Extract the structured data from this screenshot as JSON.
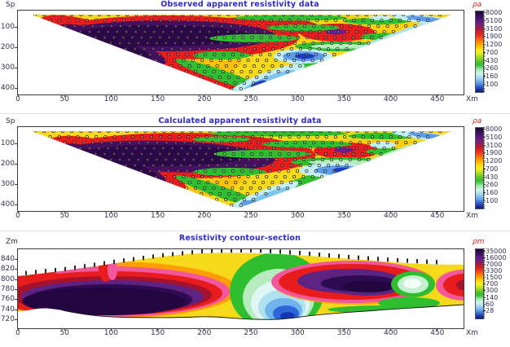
{
  "colors": {
    "title_blue": "#2f2acd",
    "tick_label": "#32324e",
    "rho_label_red": "#cc2015",
    "frame": "#3c3c3c"
  },
  "colorbar_gradient": [
    "#1d0636 0%",
    "#3a0d62 6%",
    "#5b1a86 12%",
    "#7a1f77 17%",
    "#a11a45 21%",
    "#d91c1c 26%",
    "#ef3a24 31%",
    "#ff7b00 37%",
    "#ffb300 42%",
    "#ffe312 47%",
    "#e8ef25 52%",
    "#aade22 56%",
    "#55c328 62%",
    "#2fbe2f 66%",
    "#9fe8b0 72%",
    "#d4f4ee 77%",
    "#a4d8f2 82%",
    "#64a8ec 88%",
    "#2f62d8 93%",
    "#1b2f9e 97%",
    "#101b72 100%"
  ],
  "panels": [
    {
      "title": "Observed apparent resistivity data",
      "y_axis_label": "Sp",
      "x_axis_unit": "Xm",
      "colorbar_label": "ρa",
      "y_ticks": [
        "100",
        "200",
        "300",
        "400"
      ],
      "x_ticks": [
        "0",
        "50",
        "100",
        "150",
        "200",
        "250",
        "300",
        "350",
        "400",
        "450"
      ],
      "colorbar_values": [
        "8000",
        "5100",
        "3100",
        "1900",
        "1200",
        "700",
        "430",
        "260",
        "160",
        "100"
      ]
    },
    {
      "title": "Calculated apparent resistivity data",
      "y_axis_label": "Sp",
      "x_axis_unit": "Xm",
      "colorbar_label": "ρa",
      "y_ticks": [
        "100",
        "200",
        "300",
        "400"
      ],
      "x_ticks": [
        "0",
        "50",
        "100",
        "150",
        "200",
        "250",
        "300",
        "350",
        "400",
        "450"
      ],
      "colorbar_values": [
        "8000",
        "5100",
        "3100",
        "1900",
        "1200",
        "700",
        "430",
        "260",
        "160",
        "100"
      ]
    },
    {
      "title": "Resistivity contour-section",
      "y_axis_label": "Zm",
      "x_axis_unit": "Xm",
      "colorbar_label": "ρm",
      "y_ticks": [
        "840",
        "820",
        "800",
        "780",
        "760",
        "740",
        "720"
      ],
      "x_ticks": [
        "0",
        "50",
        "100",
        "150",
        "200",
        "250",
        "300",
        "350",
        "400",
        "450"
      ],
      "colorbar_values": [
        "35000",
        "16000",
        "7000",
        "3300",
        "1500",
        "700",
        "300",
        "140",
        "60",
        "28"
      ]
    }
  ],
  "chart_data": [
    {
      "type": "heatmap",
      "title": "Observed apparent resistivity data",
      "xlabel": "Xm",
      "ylabel": "Sp",
      "xlim": [
        0,
        480
      ],
      "y_axis_reversed": true,
      "x_ticks": [
        0,
        50,
        100,
        150,
        200,
        250,
        300,
        350,
        400,
        450
      ],
      "y_ticks": [
        100,
        200,
        300,
        400
      ],
      "legend_position": "right",
      "grid": false,
      "colorbar": {
        "label": "ρa",
        "levels": [
          100,
          160,
          260,
          430,
          700,
          1200,
          1900,
          3100,
          5100,
          8000
        ],
        "scale": "log"
      },
      "shape": "inverted-triangle pseudosection with small circular sample markers (rows every ~30 Sp, points every ~10 Xm)",
      "features": [
        {
          "region": "x 30-300, Sp 20-250",
          "value_ohm_m": ">5100 dark-purple high-resistivity core ringed by 3100-5100 red"
        },
        {
          "region": "x 320-360, Sp ~100",
          "value_ohm_m": "3100-5100 red anomaly with small >5100 purple core"
        },
        {
          "region": "x 290-330, Sp 230-300",
          "value_ohm_m": "100-260 blue low with cyan halo"
        },
        {
          "region": "x 230-280, Sp 330-420 (near bottom vertex)",
          "value_ohm_m": "160-430 cyan/blue tail with green fringe"
        },
        {
          "region": "x 420-470, top rows (right tip)",
          "value_ohm_m": "160-430 cyan/blue streak"
        },
        {
          "region": "background right half",
          "value_ohm_m": "700-1900 yellow with 430-700 green streaks"
        }
      ]
    },
    {
      "type": "heatmap",
      "title": "Calculated apparent resistivity data",
      "xlabel": "Xm",
      "ylabel": "Sp",
      "xlim": [
        0,
        480
      ],
      "y_axis_reversed": true,
      "x_ticks": [
        0,
        50,
        100,
        150,
        200,
        250,
        300,
        350,
        400,
        450
      ],
      "y_ticks": [
        100,
        200,
        300,
        400
      ],
      "legend_position": "right",
      "grid": false,
      "colorbar": {
        "label": "ρa",
        "levels": [
          100,
          160,
          260,
          430,
          700,
          1200,
          1900,
          3100,
          5100,
          8000
        ],
        "scale": "log"
      },
      "shape": "inverted-triangle pseudosection with small circular sample markers; smoother model response of panel 1",
      "features": [
        {
          "region": "x 50-300, Sp 30-250",
          "value_ohm_m": ">5100 dark-purple core ringed by 3100-5100 red"
        },
        {
          "region": "x 335-360, Sp ~100",
          "value_ohm_m": "smaller 3100-5100 red anomaly with purple speck"
        },
        {
          "region": "x 330-360, Sp 180-230",
          "value_ohm_m": "100-260 blue low with cyan halo"
        },
        {
          "region": "x 230-290, Sp 330-420",
          "value_ohm_m": "160-430 cyan/blue tail"
        },
        {
          "region": "top rows x 200-420",
          "value_ohm_m": "430-700 green streaks in 700-1900 yellow background"
        }
      ]
    },
    {
      "type": "heatmap",
      "title": "Resistivity contour-section",
      "xlabel": "Xm",
      "ylabel": "Zm",
      "xlim": [
        0,
        480
      ],
      "ylim": [
        720,
        850
      ],
      "x_ticks": [
        0,
        50,
        100,
        150,
        200,
        250,
        300,
        350,
        400,
        450
      ],
      "y_ticks": [
        840,
        820,
        800,
        780,
        760,
        740,
        720
      ],
      "legend_position": "right",
      "grid": false,
      "colorbar": {
        "label": "ρm",
        "levels": [
          28,
          60,
          140,
          300,
          700,
          1500,
          3300,
          7000,
          16000,
          35000
        ],
        "scale": "log"
      },
      "shape": "inverted model section between ground-surface topography (electrode ticks ~ every 12 Xm) and basement line",
      "features": [
        {
          "region": "x 0-210, Zm 740-805",
          "value_ohm_m": ">16000 large dark-purple body with purple/red/pink/orange concentric rings"
        },
        {
          "region": "x ~115, up to surface",
          "value_ohm_m": "7000-16000 red/pink spike reaching surface"
        },
        {
          "region": "x 250-310, Zm 720-790",
          "value_ohm_m": "28-300 blue/cyan/white low inside green (300-700) chimney to surface"
        },
        {
          "region": "x 330-420, Zm 775-805",
          "value_ohm_m": ">16000 purple body ringed by 7000-16000 red and pink"
        },
        {
          "region": "x ~420-450, Zm ~825",
          "value_ohm_m": "140-300 white/green pocket; cyan patches at surface x 440-470"
        },
        {
          "region": "x 465-480, Zm ~795",
          "value_ohm_m": "7000-16000 red body at right edge"
        },
        {
          "region": "near-surface layer",
          "value_ohm_m": "1500-3300 yellow/orange blanket"
        }
      ]
    }
  ]
}
